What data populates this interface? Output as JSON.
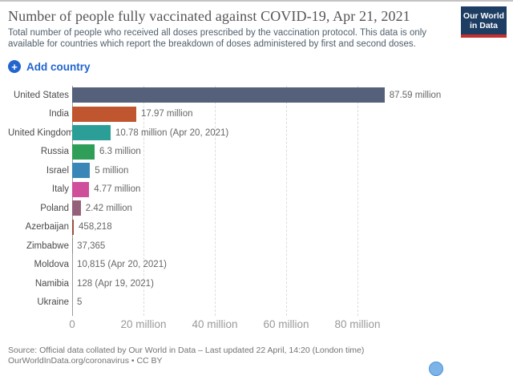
{
  "header": {
    "title": "Number of people fully vaccinated against COVID-19, Apr 21, 2021",
    "subtitle": "Total number of people who received all doses prescribed by the vaccination protocol. This data is only available for countries which report the breakdown of doses administered by first and second doses.",
    "logo": {
      "line1": "Our World",
      "line2": "in Data"
    }
  },
  "toolbar": {
    "add_country_label": "Add country"
  },
  "chart_data": {
    "type": "bar",
    "orientation": "horizontal",
    "title": "Number of people fully vaccinated against COVID-19, Apr 21, 2021",
    "categories": [
      "United States",
      "India",
      "United Kingdom",
      "Russia",
      "Israel",
      "Italy",
      "Poland",
      "Azerbaijan",
      "Zimbabwe",
      "Moldova",
      "Namibia",
      "Ukraine"
    ],
    "values": [
      87590000,
      17970000,
      10780000,
      6300000,
      5000000,
      4770000,
      2420000,
      458218,
      37365,
      10815,
      128,
      5
    ],
    "value_labels": [
      "87.59 million",
      "17.97 million",
      "10.78 million (Apr 20, 2021)",
      "6.3 million",
      "5 million",
      "4.77 million",
      "2.42 million",
      "458,218",
      "37,365",
      "10,815 (Apr 20, 2021)",
      "128 (Apr 19, 2021)",
      "5"
    ],
    "bar_colors": [
      "#55617a",
      "#c0562f",
      "#2a9e97",
      "#2f9e58",
      "#3a87b7",
      "#d04f9b",
      "#93617a",
      "#9c4e3c",
      "#888888",
      "#888888",
      "#888888",
      "#888888"
    ],
    "x_ticks": [
      {
        "label": "0",
        "value": 0
      },
      {
        "label": "20 million",
        "value": 20000000
      },
      {
        "label": "40 million",
        "value": 40000000
      },
      {
        "label": "60 million",
        "value": 60000000
      },
      {
        "label": "80 million",
        "value": 80000000
      }
    ],
    "xlim": [
      0,
      92000000
    ],
    "grid": true,
    "legend": "none"
  },
  "footer": {
    "source_line1": "Source: Official data collated by Our World in Data – Last updated 22 April, 14:20 (London time)",
    "source_line2": "OurWorldInData.org/coronavirus • CC BY"
  },
  "colors": {
    "accent_blue": "#2265cf",
    "logo_navy": "#1d3d63",
    "logo_red": "#c5302b",
    "title_gray": "#555555"
  }
}
